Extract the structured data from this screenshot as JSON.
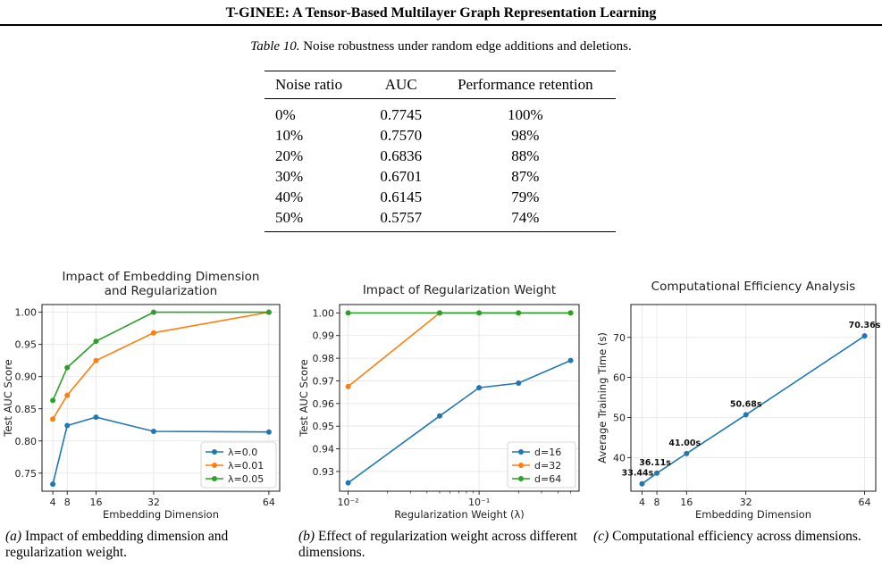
{
  "header": {
    "title": "T-GINEE: A Tensor-Based Multilayer Graph Representation Learning"
  },
  "table": {
    "label": "Table 10.",
    "caption": "Noise robustness under random edge additions and deletions.",
    "columns": [
      "Noise ratio",
      "AUC",
      "Performance retention"
    ],
    "rows": [
      [
        "0%",
        "0.7745",
        "100%"
      ],
      [
        "10%",
        "0.7570",
        "98%"
      ],
      [
        "20%",
        "0.6836",
        "88%"
      ],
      [
        "30%",
        "0.6701",
        "87%"
      ],
      [
        "40%",
        "0.6145",
        "79%"
      ],
      [
        "50%",
        "0.5757",
        "74%"
      ]
    ]
  },
  "colors": {
    "blue": "#1f77b4",
    "orange": "#ff7f0e",
    "green": "#2ca02c",
    "grid": "#e6e6e6"
  },
  "chart_data": [
    {
      "type": "line",
      "title": "Impact of Embedding Dimension\nand Regularization",
      "xlabel": "Embedding Dimension",
      "ylabel": "Test AUC Score",
      "x": [
        4,
        8,
        16,
        32,
        64
      ],
      "xticks": [
        "4",
        "8",
        "16",
        "32",
        "64"
      ],
      "yticks": [
        "0.75",
        "0.80",
        "0.85",
        "0.90",
        "0.95",
        "1.00"
      ],
      "ylim": [
        0.722,
        1.012
      ],
      "xlim": [
        1,
        67
      ],
      "legend": "lower-right",
      "grid": true,
      "series": [
        {
          "name": "λ=0.0",
          "values": [
            0.733,
            0.824,
            0.837,
            0.815,
            0.814
          ]
        },
        {
          "name": "λ=0.01",
          "values": [
            0.834,
            0.871,
            0.925,
            0.968,
            1.0
          ]
        },
        {
          "name": "λ=0.05",
          "values": [
            0.863,
            0.914,
            0.955,
            1.0,
            1.0
          ]
        }
      ]
    },
    {
      "type": "line",
      "title": "Impact of Regularization Weight",
      "xlabel": "Regularization Weight (λ)",
      "ylabel": "Test AUC Score",
      "xscale": "log",
      "x": [
        0.01,
        0.05,
        0.1,
        0.2,
        0.5
      ],
      "xticks": [
        "10⁻²",
        "10⁻¹"
      ],
      "yticks": [
        "0.93",
        "0.94",
        "0.95",
        "0.96",
        "0.97",
        "0.98",
        "0.99",
        "1.00"
      ],
      "ylim": [
        0.9213,
        1.0037
      ],
      "legend": "lower-right",
      "grid": true,
      "series": [
        {
          "name": "d=16",
          "values": [
            0.925,
            0.9545,
            0.967,
            0.969,
            0.979
          ]
        },
        {
          "name": "d=32",
          "values": [
            0.9675,
            1.0,
            1.0,
            1.0,
            1.0
          ]
        },
        {
          "name": "d=64",
          "values": [
            1.0,
            1.0,
            1.0,
            1.0,
            1.0
          ]
        }
      ]
    },
    {
      "type": "line",
      "title": "Computational Efficiency Analysis",
      "xlabel": "Embedding Dimension",
      "ylabel": "Average Training Time (s)",
      "x": [
        4,
        8,
        16,
        32,
        64
      ],
      "xticks": [
        "4",
        "8",
        "16",
        "32",
        "64"
      ],
      "yticks": [
        "40",
        "50",
        "60",
        "70"
      ],
      "ylim": [
        31.6,
        78.2
      ],
      "xlim": [
        1,
        67
      ],
      "grid": true,
      "series": [
        {
          "values": [
            33.44,
            36.11,
            41.0,
            50.68,
            70.36
          ],
          "labels": [
            "33.44s",
            "36.11s",
            "41.00s",
            "50.68s",
            "70.36s"
          ]
        }
      ]
    }
  ],
  "subcaptions": [
    {
      "tag": "(a)",
      "text": " Impact of embedding dimension and regularization weight."
    },
    {
      "tag": "(b)",
      "text": " Effect of regularization weight across different dimensions."
    },
    {
      "tag": "(c)",
      "text": " Computational efficiency across dimensions."
    }
  ]
}
